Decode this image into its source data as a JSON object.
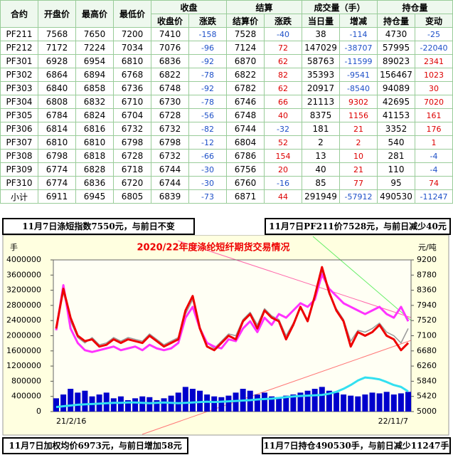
{
  "table": {
    "headers": [
      "合约",
      "开盘价",
      "最高价",
      "最低价"
    ],
    "groups": [
      {
        "label": "收盘",
        "sub": [
          "收盘价",
          "涨跌"
        ]
      },
      {
        "label": "结算",
        "sub": [
          "结算价",
          "涨跌"
        ]
      },
      {
        "label": "成交量（手）",
        "sub": [
          "当日量",
          "增减"
        ]
      },
      {
        "label": "持仓量",
        "sub": [
          "持仓量",
          "变动"
        ]
      }
    ],
    "rows": [
      [
        "PF211",
        7568,
        7650,
        7200,
        7410,
        -158,
        7528,
        -40,
        38,
        -114,
        4730,
        -25
      ],
      [
        "PF212",
        7172,
        7224,
        7034,
        7076,
        -96,
        7124,
        72,
        147029,
        -38707,
        57995,
        -22040
      ],
      [
        "PF301",
        6928,
        6954,
        6810,
        6836,
        -92,
        6870,
        62,
        58763,
        -11599,
        89023,
        2341
      ],
      [
        "PF302",
        6864,
        6894,
        6768,
        6822,
        -78,
        6822,
        82,
        35393,
        -9541,
        156467,
        1023
      ],
      [
        "PF303",
        6840,
        6858,
        6736,
        6748,
        -92,
        6782,
        62,
        20917,
        -8540,
        94089,
        30
      ],
      [
        "PF304",
        6808,
        6832,
        6710,
        6730,
        -78,
        6746,
        66,
        21113,
        9302,
        42695,
        7020
      ],
      [
        "PF305",
        6784,
        6824,
        6704,
        6728,
        -56,
        6748,
        40,
        8375,
        1156,
        41153,
        161
      ],
      [
        "PF306",
        6814,
        6816,
        6732,
        6732,
        -82,
        6744,
        -32,
        181,
        21,
        3352,
        176
      ],
      [
        "PF307",
        6810,
        6810,
        6798,
        6798,
        -12,
        6804,
        52,
        2,
        2,
        540,
        1
      ],
      [
        "PF308",
        6798,
        6818,
        6728,
        6732,
        -66,
        6786,
        154,
        13,
        10,
        281,
        -4
      ],
      [
        "PF309",
        6774,
        6828,
        6718,
        6744,
        -30,
        6756,
        20,
        40,
        21,
        110,
        -4
      ],
      [
        "PF310",
        6774,
        6836,
        6720,
        6744,
        -30,
        6760,
        -16,
        85,
        77,
        95,
        74
      ],
      [
        "小计",
        6911,
        6945,
        6805,
        6839,
        -73,
        6871,
        44,
        291949,
        -57912,
        490530,
        -11247
      ]
    ]
  },
  "banners": [
    "11月7日涤短指数7550元，与前日不变",
    "11月7日PF211价7528元，与前日减少40元",
    "11月7日加权均价6973元，与前日增加58元",
    "11月7日持仓490530手，与前日减少11247手"
  ],
  "chart_data": {
    "type": "combo",
    "title": "2020/22年度涤纶短纤期货交易情况",
    "y_unit": "手",
    "y2_unit": "元/吨",
    "categories": [
      "21/2/16",
      null,
      null,
      null,
      null,
      null,
      null,
      null,
      null,
      null,
      null,
      null,
      null,
      null,
      null,
      null,
      null,
      null,
      null,
      null,
      null,
      null,
      null,
      null,
      null,
      null,
      null,
      null,
      null,
      null,
      null,
      null,
      null,
      null,
      null,
      null,
      null,
      null,
      null,
      null,
      null,
      null,
      null,
      null,
      null,
      null,
      null,
      null,
      null,
      "22/11/7"
    ],
    "ylim": [
      0,
      4000000
    ],
    "yticks": [
      0,
      400000,
      800000,
      1200000,
      1600000,
      2000000,
      2400000,
      2800000,
      3200000,
      3600000,
      4000000
    ],
    "y2lim": [
      5000,
      9200
    ],
    "y2ticks": [
      5000,
      5420,
      5840,
      6260,
      6680,
      7100,
      7520,
      7940,
      8360,
      8780,
      9200
    ],
    "series": [
      {
        "type": "bar",
        "color": "#0000cc",
        "values": [
          350000,
          450000,
          600000,
          500000,
          550000,
          400000,
          450000,
          500000,
          350000,
          400000,
          300000,
          350000,
          400000,
          380000,
          300000,
          350000,
          420000,
          500000,
          650000,
          600000,
          550000,
          450000,
          400000,
          380000,
          420000,
          500000,
          600000,
          550000,
          450000,
          500000,
          400000,
          380000,
          420000,
          450000,
          500000,
          550000,
          600000,
          650000,
          550000,
          500000,
          450000,
          420000,
          400000,
          450000,
          500000,
          480000,
          520000,
          450000,
          480000,
          520000
        ]
      },
      {
        "type": "line",
        "color": "#33e0f0",
        "values": [
          120000,
          140000,
          160000,
          180000,
          190000,
          200000,
          210000,
          220000,
          230000,
          230000,
          240000,
          240000,
          230000,
          220000,
          230000,
          240000,
          230000,
          220000,
          230000,
          240000,
          250000,
          260000,
          250000,
          260000,
          270000,
          280000,
          290000,
          300000,
          320000,
          330000,
          340000,
          360000,
          380000,
          400000,
          410000,
          420000,
          430000,
          440000,
          470000,
          520000,
          600000,
          700000,
          820000,
          900000,
          880000,
          850000,
          780000,
          700000,
          650000,
          530000
        ]
      },
      {
        "type": "line",
        "axis": "y2",
        "color": "#999999",
        "values": [
          7350,
          8300,
          7500,
          7050,
          6900,
          7050,
          6850,
          6900,
          7050,
          6950,
          7050,
          7000,
          6950,
          7150,
          7000,
          6850,
          6950,
          7050,
          7700,
          8100,
          7350,
          6900,
          6750,
          6950,
          7150,
          7100,
          7550,
          7750,
          7400,
          7850,
          7650,
          7550,
          7100,
          7450,
          7850,
          7550,
          8150,
          8900,
          8250,
          7850,
          7550,
          6950,
          7250,
          7200,
          7300,
          7450,
          7200,
          7100,
          6900,
          7300
        ]
      },
      {
        "type": "line",
        "axis": "y2",
        "color": "#ff33ff",
        "values": [
          7250,
          8500,
          7300,
          6900,
          6700,
          6650,
          6700,
          6750,
          6800,
          6700,
          6750,
          6800,
          6700,
          6850,
          6750,
          6700,
          6750,
          6900,
          7600,
          7900,
          7300,
          6900,
          6800,
          6750,
          7000,
          6950,
          7300,
          7500,
          7200,
          7600,
          7400,
          7700,
          7600,
          7800,
          8000,
          7900,
          8100,
          8800,
          8400,
          8200,
          8000,
          7900,
          7800,
          7700,
          7800,
          7900,
          7700,
          7600,
          7900,
          7500
        ]
      },
      {
        "type": "line",
        "axis": "y2",
        "color": "#ee0000",
        "values": [
          7300,
          8400,
          7600,
          7100,
          6950,
          7000,
          6800,
          6850,
          7000,
          6900,
          7000,
          6950,
          6900,
          7100,
          6950,
          6800,
          6900,
          7000,
          7800,
          8200,
          7300,
          6800,
          6700,
          6900,
          7100,
          7000,
          7500,
          7700,
          7300,
          7800,
          7600,
          7500,
          7000,
          7400,
          7900,
          7500,
          8200,
          9000,
          8300,
          7800,
          7500,
          6800,
          7200,
          7100,
          7200,
          7400,
          7100,
          7000,
          6700,
          6900
        ]
      }
    ]
  }
}
